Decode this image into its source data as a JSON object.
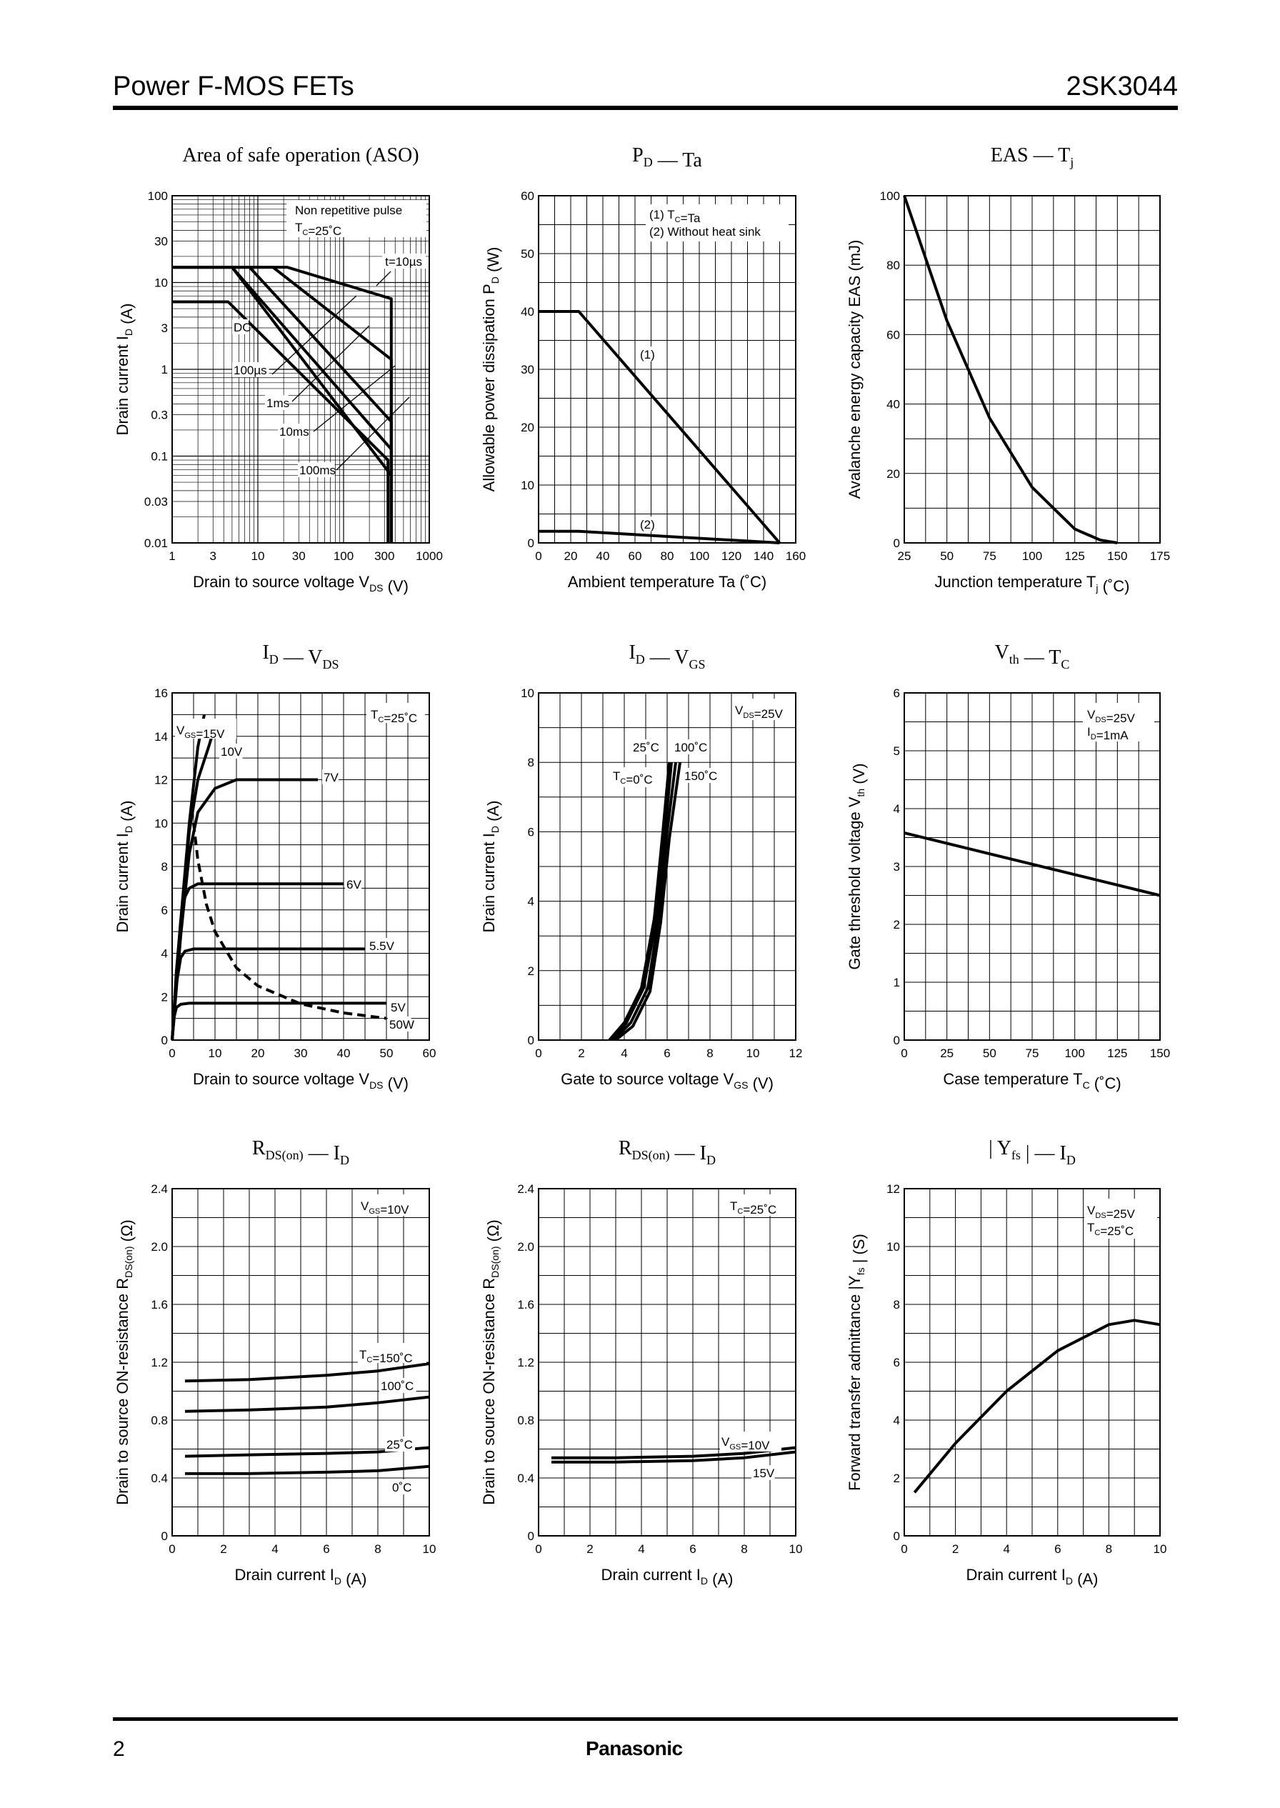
{
  "header": {
    "title": "Power F-MOS FETs",
    "part_number": "2SK3044"
  },
  "footer": {
    "page": "2",
    "brand": "Panasonic"
  },
  "chart_data": [
    {
      "id": "aso",
      "type": "line",
      "scale": "loglog",
      "title": "Area of safe operation (ASO)",
      "xlabel": "Drain to source voltage  V",
      "xlabel_sub": "DS",
      "xlabel_unit": "(V)",
      "ylabel": "Drain current  I",
      "ylabel_sub": "D",
      "ylabel_unit": "(A)",
      "xlim": [
        1,
        1000
      ],
      "ylim": [
        0.01,
        100
      ],
      "xticks": [
        1,
        3,
        10,
        30,
        100,
        300,
        1000
      ],
      "xtick_labels": [
        "1",
        "3",
        "10",
        "30",
        "100",
        "300",
        "1000"
      ],
      "yticks": [
        0.01,
        0.03,
        0.1,
        0.3,
        1,
        3,
        10,
        30,
        100
      ],
      "ytick_labels": [
        "0.01",
        "0.03",
        "0.1",
        "0.3",
        "1",
        "3",
        "10",
        "30",
        "100"
      ],
      "annotations": [
        "Non repetitive pulse",
        "T",
        "C",
        "=25˚C",
        "t=10µs",
        "DC",
        "100µs",
        "1ms",
        "10ms",
        "100ms"
      ],
      "series": [
        {
          "name": "t=10µs",
          "x": [
            1,
            22,
            360,
            360
          ],
          "y": [
            15,
            15,
            6.5,
            0.01
          ]
        },
        {
          "name": "100µs",
          "x": [
            1,
            15,
            360,
            360
          ],
          "y": [
            15,
            15,
            1.3,
            0.01
          ]
        },
        {
          "name": "1ms",
          "x": [
            1,
            8,
            360,
            360
          ],
          "y": [
            15,
            15,
            0.25,
            0.01
          ]
        },
        {
          "name": "10ms",
          "x": [
            1,
            5,
            360,
            360
          ],
          "y": [
            15,
            15,
            0.12,
            0.01
          ]
        },
        {
          "name": "100ms",
          "x": [
            1,
            5,
            360,
            360
          ],
          "y": [
            15,
            15,
            0.06,
            0.01
          ]
        },
        {
          "name": "DC",
          "x": [
            1,
            4.5,
            330,
            330
          ],
          "y": [
            6,
            6,
            0.09,
            0.01
          ]
        }
      ]
    },
    {
      "id": "pd_ta",
      "type": "line",
      "title": "P",
      "title_sub": "D",
      "title_rest": " — Ta",
      "xlabel": "Ambient temperature   Ta  (˚C)",
      "ylabel": "Allowable power dissipation   P",
      "ylabel_sub": "D",
      "ylabel_unit": "(W)",
      "xlim": [
        0,
        160
      ],
      "ylim": [
        0,
        60
      ],
      "xticks": [
        0,
        20,
        40,
        60,
        80,
        100,
        120,
        140,
        160
      ],
      "yticks": [
        0,
        10,
        20,
        30,
        40,
        50,
        60
      ],
      "legend": [
        "(1) T",
        "C",
        "=Ta",
        "(2) Without heat sink"
      ],
      "series": [
        {
          "name": "(1)",
          "x": [
            0,
            25,
            150
          ],
          "y": [
            40,
            40,
            0
          ]
        },
        {
          "name": "(2)",
          "x": [
            0,
            25,
            150
          ],
          "y": [
            2,
            2,
            0
          ]
        }
      ]
    },
    {
      "id": "eas_tj",
      "type": "line",
      "title": "EAS — T",
      "title_sub": "j",
      "xlabel": "Junction temperature   T",
      "xlabel_sub": "j",
      "xlabel_unit": "(˚C)",
      "ylabel": "Avalanche energy capacity   EAS   (mJ)",
      "xlim": [
        25,
        175
      ],
      "ylim": [
        0,
        100
      ],
      "xticks": [
        25,
        50,
        75,
        100,
        125,
        150,
        175
      ],
      "yticks": [
        0,
        20,
        40,
        60,
        80,
        100
      ],
      "series": [
        {
          "name": "EAS",
          "x": [
            25,
            50,
            75,
            100,
            125,
            140,
            150
          ],
          "y": [
            100,
            64,
            36,
            16,
            4,
            0.8,
            0
          ]
        }
      ]
    },
    {
      "id": "id_vds",
      "type": "line",
      "title": "I",
      "title_sub": "D",
      "title_rest": " — V",
      "title_sub2": "DS",
      "xlabel": "Drain to source voltage   V",
      "xlabel_sub": "DS",
      "xlabel_unit": "(V)",
      "ylabel": "Drain current   I",
      "ylabel_sub": "D",
      "ylabel_unit": "(A)",
      "xlim": [
        0,
        60
      ],
      "ylim": [
        0,
        16
      ],
      "xticks": [
        0,
        10,
        20,
        30,
        40,
        50,
        60
      ],
      "yticks": [
        0,
        2,
        4,
        6,
        8,
        10,
        12,
        14,
        16
      ],
      "annotations": [
        "T",
        "C",
        "=25˚C",
        "V",
        "GS",
        "=15V",
        "10V",
        "7V",
        "6V",
        "5.5V",
        "5V",
        "50W"
      ],
      "series": [
        {
          "name": "15V",
          "x": [
            0,
            2,
            4,
            6,
            7.5
          ],
          "y": [
            0,
            5.5,
            10,
            13.5,
            15
          ]
        },
        {
          "name": "10V",
          "x": [
            0,
            2,
            4,
            6,
            8.5,
            10.5
          ],
          "y": [
            0,
            5.3,
            9.6,
            12,
            13.5,
            14.8
          ]
        },
        {
          "name": "7V",
          "x": [
            0,
            2,
            4,
            6,
            10,
            15,
            20,
            34
          ],
          "y": [
            0,
            4.8,
            8.6,
            10.5,
            11.6,
            12,
            12,
            12
          ]
        },
        {
          "name": "6V",
          "x": [
            0,
            1,
            2,
            3,
            4,
            6,
            40
          ],
          "y": [
            0,
            3.2,
            5.5,
            6.6,
            7,
            7.2,
            7.2
          ]
        },
        {
          "name": "5.5V",
          "x": [
            0,
            1,
            2,
            3,
            5,
            45
          ],
          "y": [
            0,
            2.6,
            3.8,
            4.1,
            4.2,
            4.2
          ]
        },
        {
          "name": "5V",
          "x": [
            0,
            0.5,
            1,
            2,
            4,
            50
          ],
          "y": [
            0,
            1.1,
            1.5,
            1.65,
            1.7,
            1.7
          ]
        },
        {
          "name": "50W",
          "dashed": true,
          "x": [
            5,
            6,
            8,
            10,
            15,
            20,
            30,
            40,
            50
          ],
          "y": [
            10,
            8.3,
            6.25,
            5,
            3.33,
            2.5,
            1.67,
            1.25,
            1
          ]
        }
      ]
    },
    {
      "id": "id_vgs",
      "type": "line",
      "title": "I",
      "title_sub": "D",
      "title_rest": " — V",
      "title_sub2": "GS",
      "xlabel": "Gate to source voltage   V",
      "xlabel_sub": "GS",
      "xlabel_unit": "(V)",
      "ylabel": "Drain current   I",
      "ylabel_sub": "D",
      "ylabel_unit": "(A)",
      "xlim": [
        0,
        12
      ],
      "ylim": [
        0,
        10
      ],
      "xticks": [
        0,
        2,
        4,
        6,
        8,
        10,
        12
      ],
      "yticks": [
        0,
        2,
        4,
        6,
        8,
        10
      ],
      "annotations": [
        "V",
        "DS",
        "=25V",
        "25˚C",
        "100˚C",
        "T",
        "C",
        "=0˚C",
        "150˚C"
      ],
      "series": [
        {
          "name": "0˚C",
          "x": [
            3.3,
            4,
            4.8,
            5.4,
            5.8,
            6.1
          ],
          "y": [
            0,
            0.5,
            1.5,
            3.5,
            6,
            8
          ]
        },
        {
          "name": "25˚C",
          "x": [
            3.4,
            4.1,
            4.9,
            5.5,
            5.9,
            6.2
          ],
          "y": [
            0,
            0.5,
            1.5,
            3.5,
            6,
            8
          ]
        },
        {
          "name": "100˚C",
          "x": [
            3.5,
            4.3,
            5.1,
            5.6,
            6.0,
            6.4
          ],
          "y": [
            0,
            0.5,
            1.5,
            3.5,
            6,
            8
          ]
        },
        {
          "name": "150˚C",
          "x": [
            3.6,
            4.4,
            5.2,
            5.7,
            6.1,
            6.6
          ],
          "y": [
            0,
            0.4,
            1.4,
            3.4,
            5.8,
            8
          ]
        }
      ]
    },
    {
      "id": "vth_tc",
      "type": "line",
      "title": "V",
      "title_sub": "th",
      "title_rest": " — T",
      "title_sub2": "C",
      "xlabel": "Case temperature   T",
      "xlabel_sub": "C",
      "xlabel_unit": "(˚C)",
      "ylabel": "Gate threshold voltage   V",
      "ylabel_sub": "th",
      "ylabel_unit": "(V)",
      "xlim": [
        0,
        150
      ],
      "ylim": [
        0,
        6
      ],
      "xticks": [
        0,
        25,
        50,
        75,
        100,
        125,
        150
      ],
      "yticks": [
        0,
        1,
        2,
        3,
        4,
        5,
        6
      ],
      "annotations": [
        "V",
        "DS",
        "=25V",
        "I",
        "D",
        "=1mA"
      ],
      "series": [
        {
          "name": "Vth",
          "x": [
            0,
            150
          ],
          "y": [
            3.58,
            2.5
          ]
        }
      ]
    },
    {
      "id": "rds_id_temp",
      "type": "line",
      "title": "R",
      "title_sub": "DS(on)",
      "title_rest": " — I",
      "title_sub2": "D",
      "xlabel": "Drain current   I",
      "xlabel_sub": "D",
      "xlabel_unit": "(A)",
      "ylabel": "Drain to source ON-resistance   R",
      "ylabel_sub": "DS(on)",
      "ylabel_unit": "(Ω)",
      "xlim": [
        0,
        10
      ],
      "ylim": [
        0,
        2.4
      ],
      "xticks": [
        0,
        2,
        4,
        6,
        8,
        10
      ],
      "yticks": [
        0,
        0.4,
        0.8,
        1.2,
        1.6,
        2.0,
        2.4
      ],
      "ytick_labels": [
        "0",
        "0.4",
        "0.8",
        "1.2",
        "1.6",
        "2.0",
        "2.4"
      ],
      "annotations": [
        "V",
        "GS",
        "=10V",
        "T",
        "C",
        "=150˚C",
        "100˚C",
        "25˚C",
        "0˚C"
      ],
      "series": [
        {
          "name": "150˚C",
          "x": [
            0.5,
            3,
            6,
            8,
            10
          ],
          "y": [
            1.07,
            1.08,
            1.11,
            1.14,
            1.19
          ]
        },
        {
          "name": "100˚C",
          "x": [
            0.5,
            3,
            6,
            8,
            10
          ],
          "y": [
            0.86,
            0.87,
            0.89,
            0.92,
            0.96
          ]
        },
        {
          "name": "25˚C",
          "x": [
            0.5,
            3,
            6,
            8,
            10
          ],
          "y": [
            0.55,
            0.56,
            0.57,
            0.58,
            0.61
          ]
        },
        {
          "name": "0˚C",
          "x": [
            0.5,
            3,
            6,
            8,
            10
          ],
          "y": [
            0.43,
            0.43,
            0.44,
            0.45,
            0.48
          ]
        }
      ]
    },
    {
      "id": "rds_id_vgs",
      "type": "line",
      "title": "R",
      "title_sub": "DS(on)",
      "title_rest": " — I",
      "title_sub2": "D",
      "xlabel": "Drain current   I",
      "xlabel_sub": "D",
      "xlabel_unit": "(A)",
      "ylabel": "Drain to source ON-resistance   R",
      "ylabel_sub": "DS(on)",
      "ylabel_unit": "(Ω)",
      "xlim": [
        0,
        10
      ],
      "ylim": [
        0,
        2.4
      ],
      "xticks": [
        0,
        2,
        4,
        6,
        8,
        10
      ],
      "yticks": [
        0,
        0.4,
        0.8,
        1.2,
        1.6,
        2.0,
        2.4
      ],
      "ytick_labels": [
        "0",
        "0.4",
        "0.8",
        "1.2",
        "1.6",
        "2.0",
        "2.4"
      ],
      "annotations": [
        "T",
        "C",
        "=25˚C",
        "V",
        "GS",
        "=10V",
        "15V"
      ],
      "series": [
        {
          "name": "10V",
          "x": [
            0.5,
            3,
            6,
            8,
            10
          ],
          "y": [
            0.54,
            0.54,
            0.55,
            0.57,
            0.61
          ]
        },
        {
          "name": "15V",
          "x": [
            0.5,
            3,
            6,
            8,
            10
          ],
          "y": [
            0.51,
            0.51,
            0.52,
            0.54,
            0.58
          ]
        }
      ]
    },
    {
      "id": "yfs_id",
      "type": "line",
      "title": "| Y",
      "title_sub": "fs",
      "title_rest": " | — I",
      "title_sub2": "D",
      "xlabel": "Drain current   I",
      "xlabel_sub": "D",
      "xlabel_unit": "(A)",
      "ylabel": "Forward transfer admittance   |Y",
      "ylabel_sub": "fs",
      "ylabel_unit": "|   (S)",
      "xlim": [
        0,
        10
      ],
      "ylim": [
        0,
        12
      ],
      "xticks": [
        0,
        2,
        4,
        6,
        8,
        10
      ],
      "yticks": [
        0,
        2,
        4,
        6,
        8,
        10,
        12
      ],
      "annotations": [
        "V",
        "DS",
        "=25V",
        "T",
        "C",
        "=25˚C"
      ],
      "series": [
        {
          "name": "Yfs",
          "x": [
            0.4,
            2,
            4,
            6,
            8,
            9,
            10
          ],
          "y": [
            1.5,
            3.2,
            5.0,
            6.4,
            7.3,
            7.45,
            7.3
          ]
        }
      ]
    }
  ]
}
